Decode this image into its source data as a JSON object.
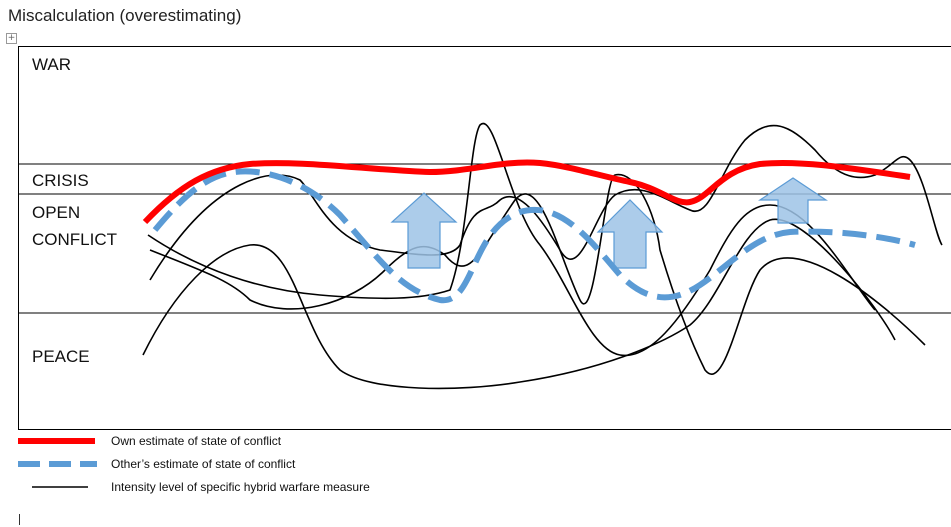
{
  "title": "Miscalculation (overestimating)",
  "bands": {
    "war": "WAR",
    "crisis": "CRISIS",
    "open1": "OPEN",
    "open2": "CONFLICT",
    "peace": "PEACE"
  },
  "legend": {
    "own": "Own estimate of state of conflict",
    "other": "Other’s estimate of state of conflict",
    "intensity": "Intensity level of specific hybrid warfare measure"
  },
  "colors": {
    "own": "#ff0000",
    "other": "#5b9bd5",
    "arrow_fill": "#9dc3e6",
    "arrow_stroke": "#5b9bd5",
    "intensity": "#000000"
  },
  "icons": {
    "move_handle": "move-handle-icon"
  }
}
